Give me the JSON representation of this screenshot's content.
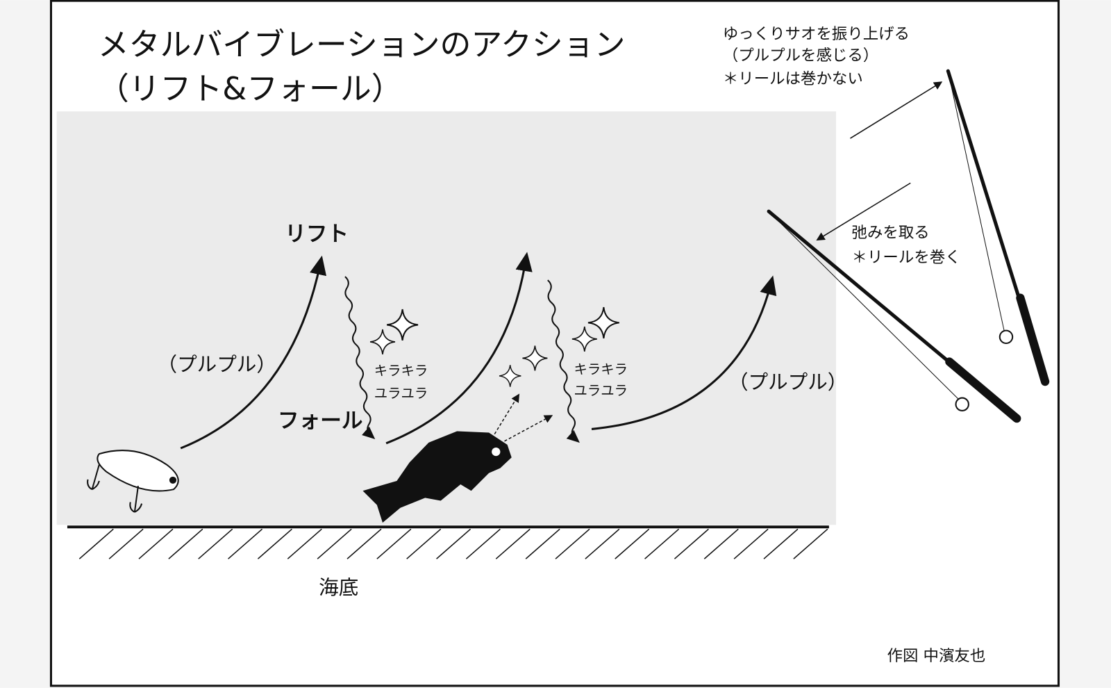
{
  "title": [
    "メタルバイブレーションのアクション",
    "（リフト&フォール）"
  ],
  "lift": "リフト",
  "fall": "フォール",
  "purupuru_left": "（プルプル）",
  "purupuru_right": "（プルプル）",
  "sparkle_left": [
    "キラキラ",
    "ユラユラ"
  ],
  "sparkle_right": [
    "キラキラ",
    "ユラユラ"
  ],
  "rod_up_note": [
    "ゆっくりサオを振り上げる",
    "（プルプルを感じる）",
    "＊リールは巻かない"
  ],
  "slack_note": [
    "弛みを取る",
    "＊リールを巻く"
  ],
  "seabed": "海底",
  "credit": "作図 中濱友也"
}
